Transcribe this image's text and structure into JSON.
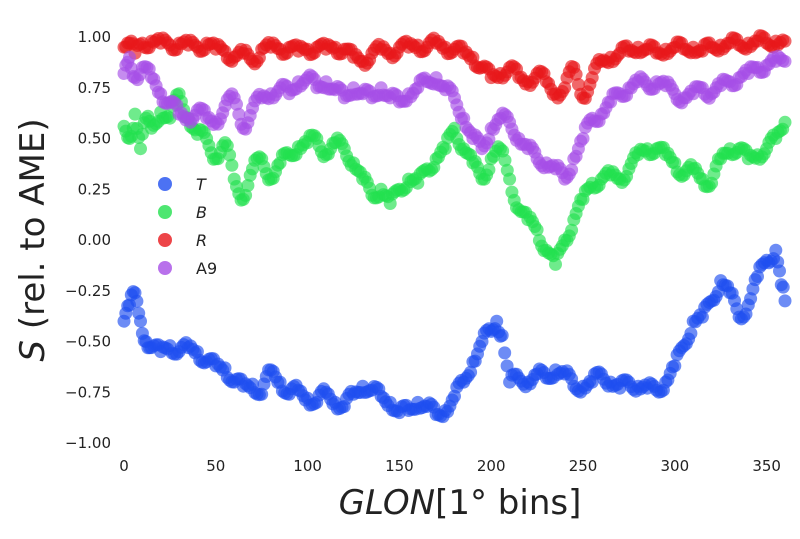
{
  "chart_data": {
    "type": "scatter",
    "xlabel": {
      "italic": "GLON",
      "rest": "[1°  bins]"
    },
    "ylabel": {
      "italic": "S",
      "rest": " (rel. to AME)"
    },
    "xlim": [
      0,
      360
    ],
    "ylim": [
      -1.0,
      1.0
    ],
    "xticks": [
      0,
      50,
      100,
      150,
      200,
      250,
      300,
      350
    ],
    "yticks": [
      -1.0,
      -0.75,
      -0.5,
      -0.25,
      0.0,
      0.25,
      0.5,
      0.75,
      1.0
    ],
    "ytick_labels": [
      "−1.00",
      "−0.75",
      "−0.50",
      "−0.25",
      "0.00",
      "0.25",
      "0.50",
      "0.75",
      "1.00"
    ],
    "grid": false,
    "legend_position": "center-left",
    "series": [
      {
        "name": "T",
        "italic": true,
        "color": "#1f4ff0",
        "points": [
          [
            0,
            -0.4
          ],
          [
            3,
            -0.32
          ],
          [
            6,
            -0.26
          ],
          [
            9,
            -0.4
          ],
          [
            12,
            -0.5
          ],
          [
            15,
            -0.53
          ],
          [
            20,
            -0.55
          ],
          [
            25,
            -0.52
          ],
          [
            30,
            -0.55
          ],
          [
            35,
            -0.53
          ],
          [
            40,
            -0.55
          ],
          [
            45,
            -0.6
          ],
          [
            50,
            -0.62
          ],
          [
            55,
            -0.63
          ],
          [
            60,
            -0.7
          ],
          [
            65,
            -0.72
          ],
          [
            70,
            -0.71
          ],
          [
            75,
            -0.76
          ],
          [
            80,
            -0.64
          ],
          [
            85,
            -0.7
          ],
          [
            90,
            -0.76
          ],
          [
            95,
            -0.74
          ],
          [
            100,
            -0.78
          ],
          [
            105,
            -0.8
          ],
          [
            110,
            -0.75
          ],
          [
            115,
            -0.8
          ],
          [
            120,
            -0.82
          ],
          [
            125,
            -0.76
          ],
          [
            130,
            -0.72
          ],
          [
            135,
            -0.74
          ],
          [
            140,
            -0.77
          ],
          [
            145,
            -0.8
          ],
          [
            150,
            -0.85
          ],
          [
            155,
            -0.84
          ],
          [
            160,
            -0.8
          ],
          [
            165,
            -0.82
          ],
          [
            170,
            -0.86
          ],
          [
            175,
            -0.84
          ],
          [
            180,
            -0.77
          ],
          [
            185,
            -0.7
          ],
          [
            190,
            -0.6
          ],
          [
            195,
            -0.5
          ],
          [
            200,
            -0.45
          ],
          [
            203,
            -0.4
          ],
          [
            206,
            -0.47
          ],
          [
            210,
            -0.7
          ],
          [
            215,
            -0.68
          ],
          [
            220,
            -0.7
          ],
          [
            225,
            -0.66
          ],
          [
            230,
            -0.68
          ],
          [
            235,
            -0.64
          ],
          [
            240,
            -0.66
          ],
          [
            245,
            -0.72
          ],
          [
            250,
            -0.72
          ],
          [
            255,
            -0.7
          ],
          [
            260,
            -0.66
          ],
          [
            265,
            -0.7
          ],
          [
            270,
            -0.73
          ],
          [
            275,
            -0.7
          ],
          [
            280,
            -0.72
          ],
          [
            285,
            -0.73
          ],
          [
            290,
            -0.74
          ],
          [
            295,
            -0.7
          ],
          [
            300,
            -0.62
          ],
          [
            305,
            -0.52
          ],
          [
            310,
            -0.4
          ],
          [
            315,
            -0.38
          ],
          [
            320,
            -0.3
          ],
          [
            325,
            -0.2
          ],
          [
            330,
            -0.26
          ],
          [
            335,
            -0.38
          ],
          [
            340,
            -0.32
          ],
          [
            345,
            -0.18
          ],
          [
            350,
            -0.1
          ],
          [
            355,
            -0.05
          ],
          [
            358,
            -0.22
          ],
          [
            360,
            -0.3
          ]
        ]
      },
      {
        "name": "B",
        "italic": true,
        "color": "#22e04e",
        "points": [
          [
            0,
            0.56
          ],
          [
            3,
            0.5
          ],
          [
            6,
            0.62
          ],
          [
            9,
            0.45
          ],
          [
            12,
            0.6
          ],
          [
            15,
            0.55
          ],
          [
            20,
            0.63
          ],
          [
            25,
            0.6
          ],
          [
            30,
            0.72
          ],
          [
            35,
            0.6
          ],
          [
            40,
            0.52
          ],
          [
            45,
            0.5
          ],
          [
            50,
            0.4
          ],
          [
            55,
            0.48
          ],
          [
            60,
            0.3
          ],
          [
            65,
            0.2
          ],
          [
            70,
            0.35
          ],
          [
            75,
            0.4
          ],
          [
            80,
            0.3
          ],
          [
            85,
            0.38
          ],
          [
            90,
            0.42
          ],
          [
            95,
            0.46
          ],
          [
            100,
            0.48
          ],
          [
            105,
            0.5
          ],
          [
            110,
            0.42
          ],
          [
            115,
            0.48
          ],
          [
            120,
            0.45
          ],
          [
            125,
            0.38
          ],
          [
            130,
            0.3
          ],
          [
            135,
            0.22
          ],
          [
            140,
            0.25
          ],
          [
            145,
            0.18
          ],
          [
            150,
            0.25
          ],
          [
            155,
            0.3
          ],
          [
            160,
            0.28
          ],
          [
            165,
            0.35
          ],
          [
            170,
            0.4
          ],
          [
            175,
            0.45
          ],
          [
            180,
            0.55
          ],
          [
            185,
            0.45
          ],
          [
            190,
            0.38
          ],
          [
            195,
            0.3
          ],
          [
            200,
            0.4
          ],
          [
            205,
            0.45
          ],
          [
            210,
            0.3
          ],
          [
            215,
            0.15
          ],
          [
            220,
            0.1
          ],
          [
            225,
            0.05
          ],
          [
            230,
            -0.05
          ],
          [
            235,
            -0.12
          ],
          [
            240,
            0.0
          ],
          [
            245,
            0.1
          ],
          [
            250,
            0.2
          ],
          [
            255,
            0.28
          ],
          [
            260,
            0.3
          ],
          [
            265,
            0.32
          ],
          [
            270,
            0.3
          ],
          [
            275,
            0.35
          ],
          [
            280,
            0.42
          ],
          [
            285,
            0.45
          ],
          [
            290,
            0.45
          ],
          [
            295,
            0.42
          ],
          [
            300,
            0.38
          ],
          [
            305,
            0.32
          ],
          [
            310,
            0.35
          ],
          [
            315,
            0.3
          ],
          [
            320,
            0.28
          ],
          [
            325,
            0.4
          ],
          [
            330,
            0.45
          ],
          [
            335,
            0.45
          ],
          [
            340,
            0.4
          ],
          [
            345,
            0.42
          ],
          [
            350,
            0.45
          ],
          [
            355,
            0.5
          ],
          [
            360,
            0.58
          ]
        ]
      },
      {
        "name": "R",
        "italic": true,
        "color": "#e8171a",
        "points": [
          [
            0,
            0.95
          ],
          [
            3,
            0.97
          ],
          [
            6,
            0.92
          ],
          [
            10,
            0.97
          ],
          [
            15,
            0.98
          ],
          [
            20,
            0.97
          ],
          [
            25,
            0.96
          ],
          [
            30,
            0.97
          ],
          [
            35,
            0.96
          ],
          [
            40,
            0.95
          ],
          [
            45,
            0.97
          ],
          [
            50,
            0.94
          ],
          [
            55,
            0.93
          ],
          [
            60,
            0.9
          ],
          [
            65,
            0.92
          ],
          [
            70,
            0.88
          ],
          [
            75,
            0.94
          ],
          [
            80,
            0.95
          ],
          [
            85,
            0.94
          ],
          [
            90,
            0.95
          ],
          [
            95,
            0.93
          ],
          [
            100,
            0.94
          ],
          [
            105,
            0.95
          ],
          [
            110,
            0.94
          ],
          [
            115,
            0.95
          ],
          [
            120,
            0.94
          ],
          [
            125,
            0.9
          ],
          [
            130,
            0.88
          ],
          [
            135,
            0.92
          ],
          [
            140,
            0.94
          ],
          [
            145,
            0.92
          ],
          [
            150,
            0.95
          ],
          [
            155,
            0.95
          ],
          [
            160,
            0.96
          ],
          [
            165,
            0.95
          ],
          [
            170,
            0.97
          ],
          [
            175,
            0.95
          ],
          [
            180,
            0.94
          ],
          [
            185,
            0.92
          ],
          [
            190,
            0.9
          ],
          [
            195,
            0.85
          ],
          [
            200,
            0.8
          ],
          [
            205,
            0.82
          ],
          [
            210,
            0.85
          ],
          [
            215,
            0.8
          ],
          [
            220,
            0.78
          ],
          [
            225,
            0.82
          ],
          [
            230,
            0.78
          ],
          [
            235,
            0.72
          ],
          [
            240,
            0.75
          ],
          [
            245,
            0.85
          ],
          [
            250,
            0.7
          ],
          [
            255,
            0.8
          ],
          [
            260,
            0.88
          ],
          [
            265,
            0.9
          ],
          [
            270,
            0.92
          ],
          [
            275,
            0.93
          ],
          [
            280,
            0.95
          ],
          [
            285,
            0.94
          ],
          [
            290,
            0.92
          ],
          [
            295,
            0.94
          ],
          [
            300,
            0.95
          ],
          [
            305,
            0.94
          ],
          [
            310,
            0.95
          ],
          [
            315,
            0.93
          ],
          [
            320,
            0.95
          ],
          [
            325,
            0.96
          ],
          [
            330,
            0.97
          ],
          [
            335,
            0.96
          ],
          [
            340,
            0.97
          ],
          [
            345,
            0.98
          ],
          [
            350,
            0.97
          ],
          [
            355,
            0.98
          ],
          [
            360,
            0.98
          ]
        ]
      },
      {
        "name": "A9",
        "italic": false,
        "color": "#a64ee6",
        "points": [
          [
            0,
            0.82
          ],
          [
            3,
            0.9
          ],
          [
            6,
            0.8
          ],
          [
            10,
            0.85
          ],
          [
            15,
            0.8
          ],
          [
            20,
            0.72
          ],
          [
            25,
            0.68
          ],
          [
            30,
            0.62
          ],
          [
            35,
            0.6
          ],
          [
            40,
            0.64
          ],
          [
            45,
            0.6
          ],
          [
            50,
            0.58
          ],
          [
            55,
            0.66
          ],
          [
            60,
            0.7
          ],
          [
            65,
            0.55
          ],
          [
            70,
            0.65
          ],
          [
            75,
            0.7
          ],
          [
            80,
            0.72
          ],
          [
            85,
            0.75
          ],
          [
            90,
            0.72
          ],
          [
            95,
            0.78
          ],
          [
            100,
            0.8
          ],
          [
            105,
            0.75
          ],
          [
            110,
            0.78
          ],
          [
            115,
            0.74
          ],
          [
            120,
            0.7
          ],
          [
            125,
            0.75
          ],
          [
            130,
            0.72
          ],
          [
            135,
            0.7
          ],
          [
            140,
            0.75
          ],
          [
            145,
            0.7
          ],
          [
            150,
            0.68
          ],
          [
            155,
            0.72
          ],
          [
            160,
            0.75
          ],
          [
            165,
            0.78
          ],
          [
            170,
            0.8
          ],
          [
            175,
            0.74
          ],
          [
            180,
            0.7
          ],
          [
            185,
            0.6
          ],
          [
            190,
            0.5
          ],
          [
            195,
            0.45
          ],
          [
            200,
            0.55
          ],
          [
            205,
            0.6
          ],
          [
            210,
            0.58
          ],
          [
            215,
            0.5
          ],
          [
            220,
            0.45
          ],
          [
            225,
            0.4
          ],
          [
            230,
            0.38
          ],
          [
            235,
            0.35
          ],
          [
            240,
            0.3
          ],
          [
            245,
            0.4
          ],
          [
            250,
            0.5
          ],
          [
            255,
            0.6
          ],
          [
            260,
            0.62
          ],
          [
            265,
            0.68
          ],
          [
            270,
            0.72
          ],
          [
            275,
            0.75
          ],
          [
            280,
            0.78
          ],
          [
            285,
            0.76
          ],
          [
            290,
            0.78
          ],
          [
            295,
            0.76
          ],
          [
            300,
            0.72
          ],
          [
            305,
            0.7
          ],
          [
            310,
            0.72
          ],
          [
            315,
            0.75
          ],
          [
            320,
            0.72
          ],
          [
            325,
            0.76
          ],
          [
            330,
            0.78
          ],
          [
            335,
            0.8
          ],
          [
            340,
            0.82
          ],
          [
            345,
            0.85
          ],
          [
            350,
            0.86
          ],
          [
            355,
            0.88
          ],
          [
            360,
            0.88
          ]
        ]
      }
    ]
  }
}
